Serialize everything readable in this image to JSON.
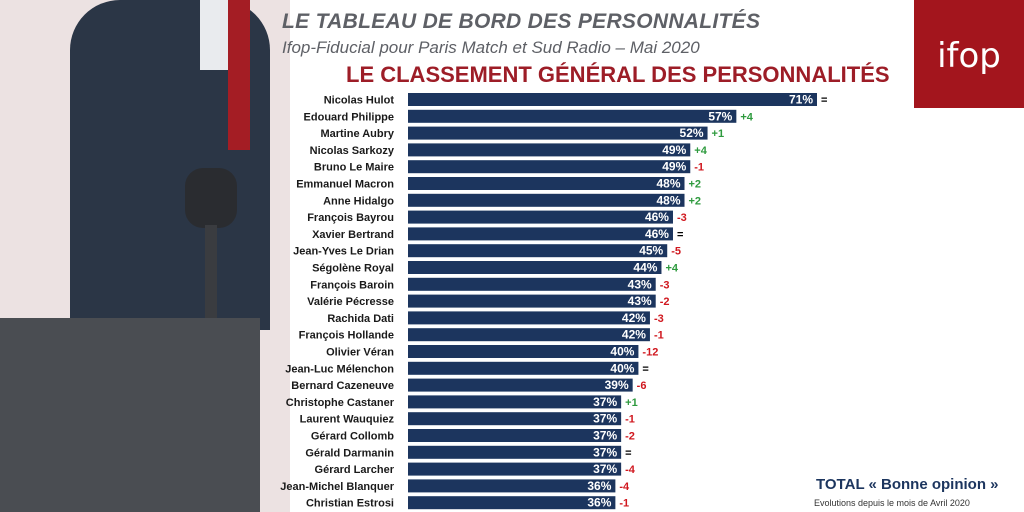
{
  "header": {
    "title": "LE TABLEAU DE BORD DES PERSONNALITÉS",
    "subtitle": "Ifop-Fiducial pour Paris Match et Sud Radio – Mai 2020",
    "chart_title": "LE CLASSEMENT GÉNÉRAL DES PERSONNALITÉS",
    "logo": "ifop"
  },
  "footer": {
    "total": "TOTAL « Bonne opinion »",
    "evolution": "Evolutions depuis le mois de Avril 2020"
  },
  "colors": {
    "bar": "#1c355e",
    "positive": "#2e9a3e",
    "negative": "#d0171e",
    "neutral": "#000000",
    "brand": "#a3151d"
  },
  "chart_data": {
    "type": "bar",
    "orientation": "horizontal",
    "title": "LE CLASSEMENT GÉNÉRAL DES PERSONNALITÉS",
    "unit": "%",
    "categories": [
      "Nicolas Hulot",
      "Edouard Philippe",
      "Martine Aubry",
      "Nicolas Sarkozy",
      "Bruno Le Maire",
      "Emmanuel Macron",
      "Anne Hidalgo",
      "François Bayrou",
      "Xavier Bertrand",
      "Jean-Yves Le Drian",
      "Ségolène Royal",
      "François Baroin",
      "Valérie Pécresse",
      "Rachida Dati",
      "François Hollande",
      "Olivier Véran",
      "Jean-Luc Mélenchon",
      "Bernard Cazeneuve",
      "Christophe Castaner",
      "Laurent Wauquiez",
      "Gérard Collomb",
      "Gérald Darmanin",
      "Gérard Larcher",
      "Jean-Michel Blanquer",
      "Christian Estrosi"
    ],
    "values": [
      71,
      57,
      52,
      49,
      49,
      48,
      48,
      46,
      46,
      45,
      44,
      43,
      43,
      42,
      42,
      40,
      40,
      39,
      37,
      37,
      37,
      37,
      37,
      36,
      36
    ],
    "labels": [
      "71%",
      "57%",
      "52%",
      "49%",
      "49%",
      "48%",
      "48%",
      "46%",
      "46%",
      "45%",
      "44%",
      "43%",
      "43%",
      "42%",
      "42%",
      "40%",
      "40%",
      "39%",
      "37%",
      "37%",
      "37%",
      "37%",
      "37%",
      "36%",
      "36%"
    ],
    "changes": [
      "=",
      "+4",
      "+1",
      "+4",
      "-1",
      "+2",
      "+2",
      "-3",
      "=",
      "-5",
      "+4",
      "-3",
      "-2",
      "-3",
      "-1",
      "-12",
      "=",
      "-6",
      "+1",
      "-1",
      "-2",
      "=",
      "-4",
      "-4",
      "-1"
    ]
  }
}
